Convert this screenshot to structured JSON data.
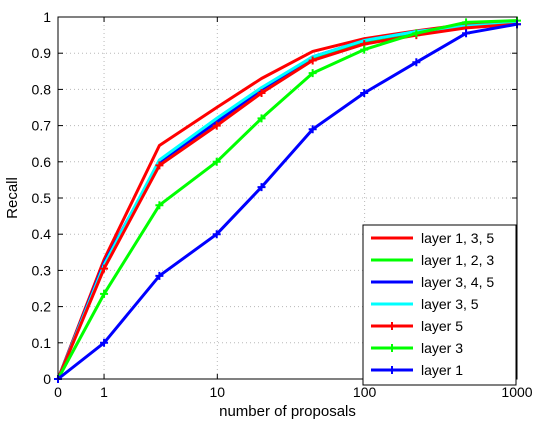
{
  "chart_data": {
    "type": "line",
    "title": "",
    "xlabel": "number of proposals",
    "ylabel": "Recall",
    "x_scale": "log(1+x)",
    "xlim": [
      0,
      1000
    ],
    "ylim": [
      0,
      1
    ],
    "grid": true,
    "legend_position": "bottom-right",
    "x_ticks": [
      {
        "value": 0,
        "label": "0"
      },
      {
        "value": 1,
        "label": "1"
      },
      {
        "value": 10,
        "label": "10"
      },
      {
        "value": 100,
        "label": "100"
      },
      {
        "value": 1000,
        "label": "1000"
      }
    ],
    "y_ticks": [
      {
        "value": 0,
        "label": "0"
      },
      {
        "value": 0.1,
        "label": "0.1"
      },
      {
        "value": 0.2,
        "label": "0.2"
      },
      {
        "value": 0.3,
        "label": "0.3"
      },
      {
        "value": 0.4,
        "label": "0.4"
      },
      {
        "value": 0.5,
        "label": "0.5"
      },
      {
        "value": 0.6,
        "label": "0.6"
      },
      {
        "value": 0.7,
        "label": "0.7"
      },
      {
        "value": 0.8,
        "label": "0.8"
      },
      {
        "value": 0.9,
        "label": "0.9"
      },
      {
        "value": 1,
        "label": "1"
      }
    ],
    "series": [
      {
        "name": "layer 1, 3, 5",
        "color": "#ff0000",
        "marker": "none",
        "x": [
          0,
          1,
          3.6,
          9.9,
          20.4,
          45.2,
          99.4,
          219,
          464,
          1000
        ],
        "y": [
          0,
          0.33,
          0.645,
          0.75,
          0.83,
          0.905,
          0.94,
          0.962,
          0.98,
          0.985
        ]
      },
      {
        "name": "layer 1, 2, 3",
        "color": "#00ff00",
        "marker": "none",
        "x": [
          0,
          1,
          3.6,
          9.9,
          20.4,
          45.2,
          99.4,
          219,
          464,
          1000
        ],
        "y": [
          0,
          0.31,
          0.6,
          0.71,
          0.8,
          0.885,
          0.93,
          0.958,
          0.975,
          0.982
        ]
      },
      {
        "name": "layer 3, 4, 5",
        "color": "#0000ff",
        "marker": "none",
        "x": [
          0,
          1,
          3.6,
          9.9,
          20.4,
          45.2,
          99.4,
          219,
          464,
          1000
        ],
        "y": [
          0,
          0.32,
          0.6,
          0.71,
          0.8,
          0.89,
          0.935,
          0.96,
          0.975,
          0.982
        ]
      },
      {
        "name": "layer 3, 5",
        "color": "#00ffff",
        "marker": "none",
        "x": [
          0,
          1,
          3.6,
          9.9,
          20.4,
          45.2,
          99.4,
          219,
          464,
          1000
        ],
        "y": [
          0,
          0.315,
          0.605,
          0.72,
          0.805,
          0.89,
          0.935,
          0.96,
          0.975,
          0.983
        ]
      },
      {
        "name": "layer 5",
        "color": "#ff0000",
        "marker": "plus",
        "x": [
          0,
          1,
          3.6,
          9.9,
          20.4,
          45.2,
          99.4,
          219,
          464,
          1000
        ],
        "y": [
          0,
          0.305,
          0.59,
          0.7,
          0.79,
          0.88,
          0.925,
          0.95,
          0.97,
          0.98
        ]
      },
      {
        "name": "layer 3",
        "color": "#00ff00",
        "marker": "plus",
        "x": [
          0,
          1,
          3.6,
          9.9,
          20.4,
          45.2,
          99.4,
          219,
          464,
          1000
        ],
        "y": [
          0,
          0.235,
          0.48,
          0.6,
          0.72,
          0.845,
          0.91,
          0.955,
          0.985,
          0.99
        ]
      },
      {
        "name": "layer 1",
        "color": "#0000ff",
        "marker": "plus",
        "x": [
          0,
          1,
          3.6,
          9.9,
          20.4,
          45.2,
          99.4,
          219,
          464,
          1000
        ],
        "y": [
          0,
          0.1,
          0.285,
          0.4,
          0.53,
          0.69,
          0.79,
          0.875,
          0.955,
          0.98
        ]
      }
    ]
  }
}
